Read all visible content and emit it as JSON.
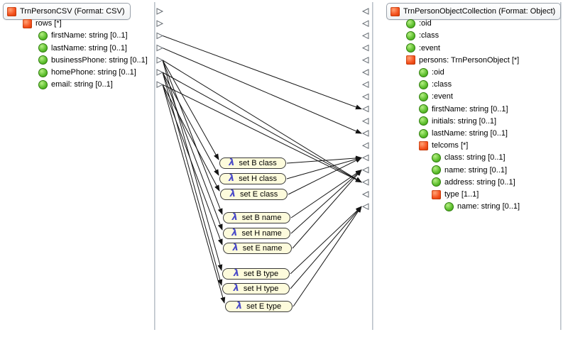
{
  "source_panel": {
    "rows": [
      {
        "id": "root",
        "label": "TrnPersonCSV (Format: CSV)",
        "icon": "record",
        "indent": 0,
        "boxed": true
      },
      {
        "id": "rows",
        "label": "rows [*]",
        "icon": "record",
        "indent": 1
      },
      {
        "id": "firstName",
        "label": "firstName: string [0..1]",
        "icon": "field",
        "indent": 2
      },
      {
        "id": "lastName",
        "label": "lastName: string [0..1]",
        "icon": "field",
        "indent": 2
      },
      {
        "id": "businessPhone",
        "label": "businessPhone: string [0..1]",
        "icon": "field",
        "indent": 2
      },
      {
        "id": "homePhone",
        "label": "homePhone: string [0..1]",
        "icon": "field",
        "indent": 2
      },
      {
        "id": "email",
        "label": "email: string [0..1]",
        "icon": "field",
        "indent": 2
      }
    ]
  },
  "target_panel": {
    "rows": [
      {
        "id": "root",
        "label": "TrnPersonObjectCollection (Format: Object)",
        "icon": "record",
        "indent": 0,
        "boxed": true
      },
      {
        "id": "oid_a",
        "label": ":oid",
        "icon": "field",
        "indent": 1
      },
      {
        "id": "class_a",
        "label": ":class",
        "icon": "field",
        "indent": 1
      },
      {
        "id": "event_a",
        "label": ":event",
        "icon": "field",
        "indent": 1
      },
      {
        "id": "persons",
        "label": "persons: TrnPersonObject [*]",
        "icon": "record",
        "indent": 1
      },
      {
        "id": "oid_b",
        "label": ":oid",
        "icon": "field",
        "indent": 2
      },
      {
        "id": "class_b",
        "label": ":class",
        "icon": "field",
        "indent": 2
      },
      {
        "id": "event_b",
        "label": ":event",
        "icon": "field",
        "indent": 2
      },
      {
        "id": "firstName",
        "label": "firstName: string [0..1]",
        "icon": "field",
        "indent": 2
      },
      {
        "id": "initials",
        "label": "initials: string [0..1]",
        "icon": "field",
        "indent": 2
      },
      {
        "id": "lastName",
        "label": "lastName: string [0..1]",
        "icon": "field",
        "indent": 2
      },
      {
        "id": "telcoms",
        "label": "telcoms [*]",
        "icon": "record",
        "indent": 2
      },
      {
        "id": "telcom_class",
        "label": "class: string [0..1]",
        "icon": "field",
        "indent": 3
      },
      {
        "id": "telcom_name",
        "label": "name: string [0..1]",
        "icon": "field",
        "indent": 3
      },
      {
        "id": "telcom_address",
        "label": "address: string [0..1]",
        "icon": "field",
        "indent": 3
      },
      {
        "id": "type",
        "label": "type [1..1]",
        "icon": "record",
        "indent": 3
      },
      {
        "id": "type_name",
        "label": "name: string [0..1]",
        "icon": "field",
        "indent": 4
      }
    ]
  },
  "functions": [
    {
      "id": "set_b_class",
      "symbol": "λ",
      "label": "set B class"
    },
    {
      "id": "set_h_class",
      "symbol": "λ",
      "label": "set H class"
    },
    {
      "id": "set_e_class",
      "symbol": "λ",
      "label": "set E class"
    },
    {
      "id": "set_b_name",
      "symbol": "λ",
      "label": "set B name"
    },
    {
      "id": "set_h_name",
      "symbol": "λ",
      "label": "set H name"
    },
    {
      "id": "set_e_name",
      "symbol": "λ",
      "label": "set E name"
    },
    {
      "id": "set_b_type",
      "symbol": "λ",
      "label": "set B type"
    },
    {
      "id": "set_h_type",
      "symbol": "λ",
      "label": "set H type"
    },
    {
      "id": "set_e_type",
      "symbol": "λ",
      "label": "set E type"
    }
  ],
  "connections": [
    {
      "from": "src.firstName",
      "to": "tgt.firstName"
    },
    {
      "from": "src.lastName",
      "to": "tgt.lastName"
    },
    {
      "from": "src.businessPhone",
      "to": "tgt.telcom_address"
    },
    {
      "from": "src.homePhone",
      "to": "tgt.telcom_address"
    },
    {
      "from": "src.email",
      "to": "tgt.telcom_address"
    },
    {
      "from": "src.businessPhone",
      "to": "lambda.set_b_class"
    },
    {
      "from": "src.businessPhone",
      "to": "lambda.set_b_name"
    },
    {
      "from": "src.businessPhone",
      "to": "lambda.set_b_type"
    },
    {
      "from": "src.homePhone",
      "to": "lambda.set_h_class"
    },
    {
      "from": "src.homePhone",
      "to": "lambda.set_h_name"
    },
    {
      "from": "src.homePhone",
      "to": "lambda.set_h_type"
    },
    {
      "from": "src.email",
      "to": "lambda.set_e_class"
    },
    {
      "from": "src.email",
      "to": "lambda.set_e_name"
    },
    {
      "from": "src.email",
      "to": "lambda.set_e_type"
    },
    {
      "from": "lambda.set_b_class",
      "to": "tgt.telcom_class"
    },
    {
      "from": "lambda.set_h_class",
      "to": "tgt.telcom_class"
    },
    {
      "from": "lambda.set_e_class",
      "to": "tgt.telcom_class"
    },
    {
      "from": "lambda.set_b_name",
      "to": "tgt.telcom_name"
    },
    {
      "from": "lambda.set_h_name",
      "to": "tgt.telcom_name"
    },
    {
      "from": "lambda.set_e_name",
      "to": "tgt.telcom_name"
    },
    {
      "from": "lambda.set_b_type",
      "to": "tgt.type_name"
    },
    {
      "from": "lambda.set_h_type",
      "to": "tgt.type_name"
    },
    {
      "from": "lambda.set_e_type",
      "to": "tgt.type_name"
    }
  ],
  "colors": {
    "record_icon": "#f4511e",
    "field_icon": "#57b32c",
    "lambda_fill": "#fdfbdc",
    "lambda_border": "#3a3a3a",
    "lambda_symbol": "#4a4ac8",
    "connection": "#141414",
    "panel_border": "#b9c0c8",
    "title_border": "#9aa2ab"
  }
}
